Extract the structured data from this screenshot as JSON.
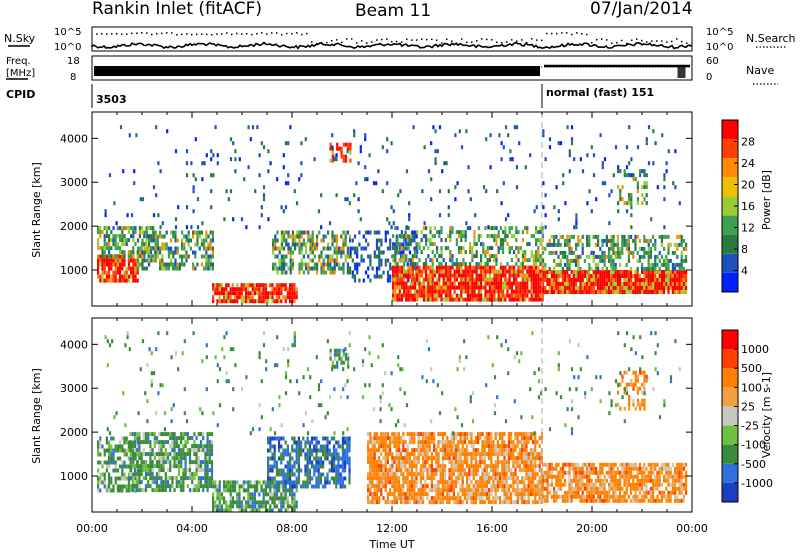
{
  "header": {
    "station": "Rankin Inlet (fitACF)",
    "beam": "Beam 11",
    "date": "07/Jan/2014"
  },
  "noise_panel": {
    "left_label": "N.Sky",
    "right_label": "N.Search",
    "ticks_left": [
      "10^5",
      "10^0"
    ],
    "ticks_right": [
      "10^5",
      "10^0"
    ]
  },
  "freq_panel": {
    "left_label_line1": "Freq.",
    "left_label_line2": "[MHz]",
    "left_ticks": [
      "18",
      "8"
    ],
    "right_label": "Nave",
    "right_ticks": [
      "60",
      "0"
    ]
  },
  "cpid": {
    "label": "CPID",
    "first_id": "3503",
    "second_text": "normal (fast) 151",
    "switch_hour": 18
  },
  "chart_data": [
    {
      "type": "heatmap",
      "name": "power",
      "ylabel": "Slant Range [km]",
      "colorbar_label": "Power [dB]",
      "colorbar_ticks": [
        "28",
        "24",
        "20",
        "16",
        "12",
        "8",
        "4"
      ],
      "colors": [
        "#0020ff",
        "#2050c0",
        "#2a7a40",
        "#3ca050",
        "#9acd32",
        "#f0c000",
        "#ff8c00",
        "#ff4000",
        "#ff0000"
      ],
      "x_ticks": [
        "00:00",
        "04:00",
        "08:00",
        "12:00",
        "16:00",
        "20:00",
        "00:00"
      ],
      "y_ticks": [
        "1000",
        "2000",
        "3000",
        "4000"
      ],
      "xlim": [
        0,
        24
      ],
      "ylim": [
        180,
        4600
      ]
    },
    {
      "type": "heatmap",
      "name": "velocity",
      "ylabel": "Slant Range [km]",
      "colorbar_label": "Velocity [m s-1]",
      "colorbar_ticks": [
        "1000",
        "500",
        "100",
        "25",
        "-25",
        "-100",
        "-500",
        "-1000"
      ],
      "colors": [
        "#1a3fc0",
        "#2f6fe0",
        "#3a8a3a",
        "#6fc040",
        "#c8c8c0",
        "#f0a040",
        "#ff8000",
        "#ff4000",
        "#ff0000"
      ],
      "x_ticks": [
        "00:00",
        "04:00",
        "08:00",
        "12:00",
        "16:00",
        "20:00",
        "00:00"
      ],
      "y_ticks": [
        "1000",
        "2000",
        "3000",
        "4000"
      ],
      "xlim": [
        0,
        24
      ],
      "ylim": [
        180,
        4600
      ],
      "xlabel": "Time UT"
    }
  ]
}
